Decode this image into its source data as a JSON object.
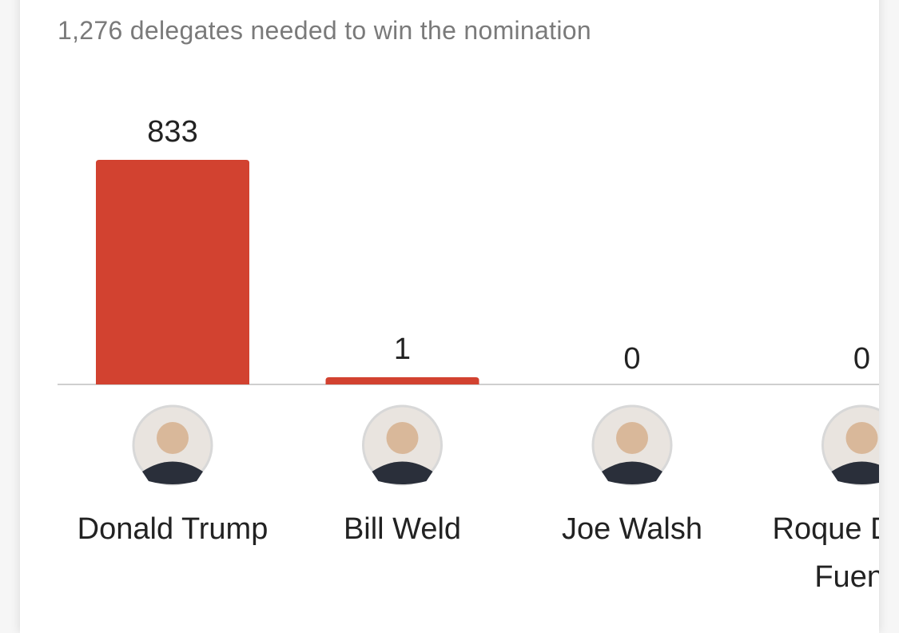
{
  "chart_data": {
    "type": "bar",
    "subtitle": "1,276 delegates needed to win the nomination",
    "categories": [
      "Donald Trump",
      "Bill Weld",
      "Joe Walsh",
      "Roque De La Fuente"
    ],
    "values": [
      833,
      1,
      0,
      0
    ],
    "color": "#d24230"
  }
}
